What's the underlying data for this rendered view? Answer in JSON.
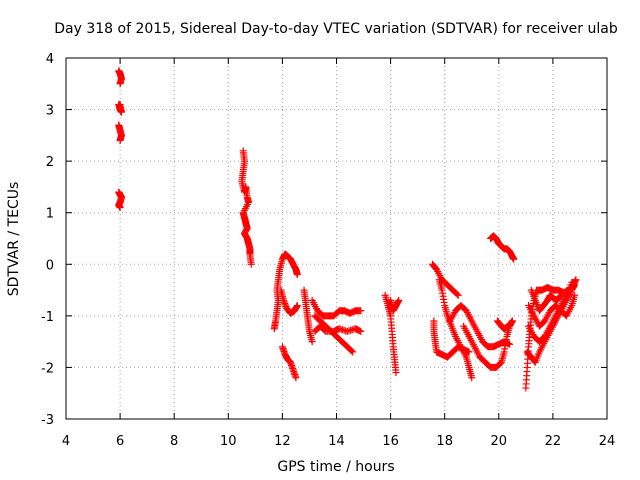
{
  "chart_data": {
    "type": "scatter",
    "title": "Day 318 of 2015, Sidereal Day-to-day VTEC variation (SDTVAR) for receiver ulab",
    "xlabel": "GPS time / hours",
    "ylabel": "SDTVAR / TECUs",
    "xlim": [
      4,
      24
    ],
    "ylim": [
      -3,
      4
    ],
    "xticks": [
      "4",
      "6",
      "8",
      "10",
      "12",
      "14",
      "16",
      "18",
      "20",
      "22",
      "24"
    ],
    "yticks": [
      "-3",
      "-2",
      "-1",
      "0",
      "1",
      "2",
      "3",
      "4"
    ],
    "grid": true,
    "marker": "plus",
    "series": [
      {
        "name": "SDTVAR",
        "color": "#ff0000",
        "segments": [
          [
            [
              5.95,
              3.75
            ],
            [
              6.0,
              3.7
            ],
            [
              6.05,
              3.6
            ],
            [
              6.0,
              3.5
            ]
          ],
          [
            [
              5.95,
              3.1
            ],
            [
              6.0,
              3.0
            ],
            [
              6.05,
              2.95
            ],
            [
              6.0,
              3.1
            ]
          ],
          [
            [
              5.95,
              2.7
            ],
            [
              6.0,
              2.6
            ],
            [
              6.05,
              2.5
            ],
            [
              6.0,
              2.4
            ]
          ],
          [
            [
              5.95,
              1.4
            ],
            [
              6.0,
              1.35
            ],
            [
              6.05,
              1.3
            ],
            [
              6.0,
              1.2
            ],
            [
              5.95,
              1.15
            ],
            [
              6.0,
              1.1
            ]
          ],
          [
            [
              10.55,
              2.2
            ],
            [
              10.6,
              2.0
            ],
            [
              10.55,
              1.8
            ],
            [
              10.5,
              1.6
            ],
            [
              10.6,
              1.4
            ],
            [
              10.65,
              1.5
            ],
            [
              10.7,
              1.3
            ],
            [
              10.75,
              1.2
            ],
            [
              10.55,
              1.0
            ],
            [
              10.6,
              0.9
            ],
            [
              10.65,
              0.8
            ],
            [
              10.7,
              0.7
            ],
            [
              10.6,
              0.6
            ],
            [
              10.7,
              0.5
            ],
            [
              10.75,
              0.4
            ],
            [
              10.8,
              0.3
            ],
            [
              10.8,
              0.2
            ],
            [
              10.85,
              0.0
            ]
          ],
          [
            [
              11.7,
              -1.25
            ],
            [
              11.75,
              -1.1
            ],
            [
              11.8,
              -0.9
            ],
            [
              11.85,
              -0.7
            ],
            [
              11.8,
              -0.5
            ],
            [
              11.85,
              -0.3
            ],
            [
              11.9,
              -0.1
            ],
            [
              12.0,
              0.1
            ],
            [
              12.1,
              0.2
            ],
            [
              12.2,
              0.15
            ],
            [
              12.3,
              0.1
            ],
            [
              12.4,
              0.0
            ],
            [
              12.5,
              -0.1
            ],
            [
              12.55,
              -0.2
            ]
          ],
          [
            [
              11.95,
              -0.5
            ],
            [
              12.05,
              -0.7
            ],
            [
              12.15,
              -0.85
            ],
            [
              12.3,
              -0.95
            ],
            [
              12.45,
              -0.9
            ],
            [
              12.55,
              -0.8
            ]
          ],
          [
            [
              12.0,
              -1.6
            ],
            [
              12.1,
              -1.75
            ],
            [
              12.2,
              -1.85
            ],
            [
              12.3,
              -1.9
            ],
            [
              12.4,
              -2.05
            ],
            [
              12.5,
              -2.2
            ]
          ],
          [
            [
              12.8,
              -0.5
            ],
            [
              12.85,
              -0.7
            ],
            [
              12.9,
              -0.9
            ],
            [
              12.95,
              -1.1
            ],
            [
              13.0,
              -1.3
            ],
            [
              13.1,
              -1.5
            ]
          ],
          [
            [
              13.1,
              -0.7
            ],
            [
              13.3,
              -0.9
            ],
            [
              13.5,
              -1.0
            ],
            [
              13.7,
              -1.0
            ],
            [
              13.9,
              -1.0
            ],
            [
              14.1,
              -0.9
            ],
            [
              14.3,
              -0.9
            ],
            [
              14.5,
              -0.95
            ],
            [
              14.7,
              -0.9
            ],
            [
              14.9,
              -0.9
            ]
          ],
          [
            [
              13.2,
              -1.0
            ],
            [
              13.4,
              -1.1
            ],
            [
              13.6,
              -1.2
            ],
            [
              13.8,
              -1.3
            ],
            [
              14.0,
              -1.4
            ],
            [
              14.2,
              -1.5
            ],
            [
              14.4,
              -1.6
            ],
            [
              14.6,
              -1.7
            ]
          ],
          [
            [
              13.2,
              -1.3
            ],
            [
              13.4,
              -1.2
            ],
            [
              13.6,
              -1.3
            ],
            [
              13.9,
              -1.3
            ],
            [
              14.1,
              -1.25
            ],
            [
              14.4,
              -1.3
            ],
            [
              14.7,
              -1.25
            ],
            [
              14.9,
              -1.3
            ]
          ],
          [
            [
              15.8,
              -0.6
            ],
            [
              15.9,
              -0.8
            ],
            [
              16.0,
              -1.0
            ],
            [
              16.05,
              -1.3
            ],
            [
              16.1,
              -1.6
            ],
            [
              16.15,
              -1.85
            ],
            [
              16.2,
              -2.1
            ]
          ],
          [
            [
              16.0,
              -0.7
            ],
            [
              16.1,
              -0.9
            ],
            [
              16.2,
              -0.8
            ],
            [
              16.3,
              -0.7
            ]
          ],
          [
            [
              17.55,
              0.0
            ],
            [
              17.7,
              -0.1
            ],
            [
              17.9,
              -0.3
            ],
            [
              18.1,
              -0.4
            ],
            [
              18.3,
              -0.5
            ],
            [
              18.5,
              -0.6
            ]
          ],
          [
            [
              17.6,
              -1.1
            ],
            [
              17.6,
              -1.3
            ],
            [
              17.65,
              -1.5
            ],
            [
              17.7,
              -1.7
            ],
            [
              17.9,
              -1.75
            ],
            [
              18.1,
              -1.8
            ],
            [
              18.3,
              -1.7
            ],
            [
              18.5,
              -1.6
            ],
            [
              18.7,
              -1.65
            ],
            [
              18.9,
              -1.7
            ]
          ],
          [
            [
              17.8,
              -0.3
            ],
            [
              17.9,
              -0.5
            ],
            [
              18.0,
              -0.8
            ],
            [
              18.1,
              -1.0
            ],
            [
              18.25,
              -1.2
            ],
            [
              18.4,
              -1.4
            ],
            [
              18.6,
              -1.6
            ],
            [
              18.8,
              -1.8
            ],
            [
              18.9,
              -2.0
            ],
            [
              19.0,
              -2.2
            ]
          ],
          [
            [
              18.2,
              -1.1
            ],
            [
              18.4,
              -0.9
            ],
            [
              18.6,
              -0.8
            ],
            [
              18.8,
              -0.9
            ],
            [
              19.0,
              -1.1
            ],
            [
              19.2,
              -1.3
            ],
            [
              19.4,
              -1.5
            ],
            [
              19.6,
              -1.6
            ],
            [
              19.8,
              -1.6
            ],
            [
              20.0,
              -1.55
            ],
            [
              20.2,
              -1.5
            ],
            [
              20.4,
              -1.55
            ]
          ],
          [
            [
              18.7,
              -1.2
            ],
            [
              18.9,
              -1.4
            ],
            [
              19.1,
              -1.6
            ],
            [
              19.3,
              -1.8
            ],
            [
              19.5,
              -1.9
            ],
            [
              19.7,
              -2.0
            ],
            [
              19.9,
              -2.0
            ],
            [
              20.1,
              -1.9
            ],
            [
              20.2,
              -1.7
            ],
            [
              20.3,
              -1.4
            ],
            [
              20.4,
              -1.2
            ],
            [
              20.5,
              -1.1
            ]
          ],
          [
            [
              19.7,
              0.5
            ],
            [
              19.8,
              0.55
            ],
            [
              19.9,
              0.5
            ],
            [
              20.0,
              0.4
            ],
            [
              20.1,
              0.35
            ],
            [
              20.2,
              0.3
            ],
            [
              20.3,
              0.3
            ],
            [
              20.4,
              0.25
            ],
            [
              20.5,
              0.15
            ],
            [
              20.55,
              0.1
            ]
          ],
          [
            [
              19.95,
              -1.1
            ],
            [
              20.1,
              -1.2
            ],
            [
              20.2,
              -1.25
            ],
            [
              20.35,
              -1.2
            ],
            [
              20.5,
              -1.1
            ]
          ],
          [
            [
              21.0,
              -2.4
            ],
            [
              21.05,
              -2.0
            ],
            [
              21.1,
              -1.6
            ],
            [
              21.15,
              -1.3
            ],
            [
              21.2,
              -1.0
            ],
            [
              21.3,
              -0.7
            ],
            [
              21.4,
              -0.5
            ],
            [
              21.6,
              -0.5
            ],
            [
              21.8,
              -0.45
            ],
            [
              22.0,
              -0.5
            ],
            [
              22.2,
              -0.5
            ],
            [
              22.4,
              -0.55
            ],
            [
              22.6,
              -0.5
            ],
            [
              22.75,
              -0.4
            ],
            [
              22.85,
              -0.3
            ]
          ],
          [
            [
              21.05,
              -1.7
            ],
            [
              21.2,
              -1.8
            ],
            [
              21.35,
              -1.9
            ],
            [
              21.5,
              -1.7
            ],
            [
              21.7,
              -1.5
            ],
            [
              21.9,
              -1.3
            ],
            [
              22.1,
              -1.1
            ],
            [
              22.3,
              -0.9
            ],
            [
              22.5,
              -0.7
            ],
            [
              22.7,
              -0.5
            ],
            [
              22.8,
              -0.4
            ]
          ],
          [
            [
              21.1,
              -1.2
            ],
            [
              21.3,
              -1.4
            ],
            [
              21.5,
              -1.5
            ],
            [
              21.7,
              -1.4
            ],
            [
              21.9,
              -1.2
            ],
            [
              22.1,
              -1.0
            ],
            [
              22.3,
              -0.8
            ],
            [
              22.5,
              -0.6
            ],
            [
              22.7,
              -0.35
            ]
          ],
          [
            [
              21.1,
              -0.8
            ],
            [
              21.3,
              -1.0
            ],
            [
              21.5,
              -1.2
            ],
            [
              21.7,
              -1.1
            ],
            [
              21.9,
              -0.9
            ],
            [
              22.1,
              -0.8
            ],
            [
              22.3,
              -0.9
            ],
            [
              22.5,
              -1.0
            ],
            [
              22.7,
              -0.8
            ],
            [
              22.8,
              -0.6
            ]
          ],
          [
            [
              21.2,
              -0.5
            ],
            [
              21.35,
              -0.7
            ],
            [
              21.5,
              -0.9
            ],
            [
              21.65,
              -0.8
            ],
            [
              21.8,
              -0.7
            ],
            [
              21.9,
              -0.6
            ],
            [
              22.0,
              -0.65
            ],
            [
              22.15,
              -0.7
            ],
            [
              22.3,
              -0.6
            ]
          ]
        ]
      }
    ]
  }
}
